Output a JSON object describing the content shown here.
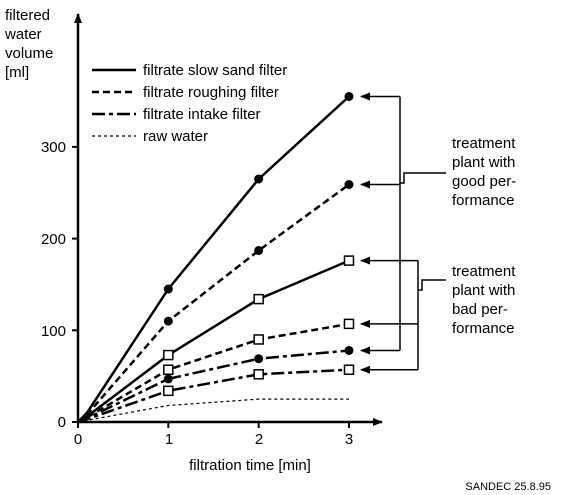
{
  "chart_data": {
    "type": "line",
    "ylabel_lines": [
      "filtered",
      "water",
      "volume",
      "[ml]"
    ],
    "xlabel": "filtration time [min]",
    "xlim": [
      0,
      3.3
    ],
    "ylim": [
      0,
      400
    ],
    "xticks": [
      0,
      1,
      2,
      3
    ],
    "yticks": [
      0,
      100,
      200,
      300
    ],
    "grid": false,
    "legend_placement": "top-left",
    "legend": [
      {
        "label": "filtrate slow sand filter",
        "style": "solid"
      },
      {
        "label": "filtrate roughing filter",
        "style": "dashed"
      },
      {
        "label": "filtrate intake filter",
        "style": "dashdot"
      },
      {
        "label": "raw water",
        "style": "dotted"
      }
    ],
    "series": [
      {
        "style": "solid",
        "marker": "filled-circle",
        "group": "good",
        "x": [
          0,
          0.1,
          1,
          2,
          3
        ],
        "y": [
          0,
          10,
          145,
          265,
          355
        ]
      },
      {
        "style": "dashed",
        "marker": "filled-circle",
        "group": "good",
        "x": [
          0,
          0.1,
          1,
          2,
          3
        ],
        "y": [
          0,
          8,
          110,
          187,
          259
        ]
      },
      {
        "style": "solid",
        "marker": "open-square",
        "group": "bad",
        "x": [
          0,
          0.1,
          1,
          2,
          3
        ],
        "y": [
          0,
          6,
          73,
          134,
          176
        ]
      },
      {
        "style": "dashed",
        "marker": "open-square",
        "group": "bad",
        "x": [
          0,
          0.1,
          1,
          2,
          3
        ],
        "y": [
          0,
          5,
          57,
          90,
          107
        ]
      },
      {
        "style": "dashdot",
        "marker": "filled-circle",
        "group": "good",
        "x": [
          0,
          0.1,
          1,
          2,
          3
        ],
        "y": [
          0,
          4,
          47,
          69,
          78
        ]
      },
      {
        "style": "dashdot",
        "marker": "open-square",
        "group": "bad",
        "x": [
          0,
          0.1,
          1,
          2,
          3
        ],
        "y": [
          0,
          3,
          34,
          52,
          57
        ]
      },
      {
        "style": "dotted",
        "marker": "none",
        "group": "raw",
        "x": [
          0,
          0.5,
          1,
          2,
          3
        ],
        "y": [
          0,
          9,
          18,
          25,
          25
        ]
      }
    ],
    "annotations": [
      {
        "group": "good",
        "lines": [
          "treatment",
          "plant with",
          "good per-",
          "formance"
        ]
      },
      {
        "group": "bad",
        "lines": [
          "treatment",
          "plant with",
          "bad per-",
          "formance"
        ]
      }
    ],
    "credit": "SANDEC 25.8.95",
    "colors": {
      "ink": "#000000",
      "background": "#ffffff"
    }
  }
}
